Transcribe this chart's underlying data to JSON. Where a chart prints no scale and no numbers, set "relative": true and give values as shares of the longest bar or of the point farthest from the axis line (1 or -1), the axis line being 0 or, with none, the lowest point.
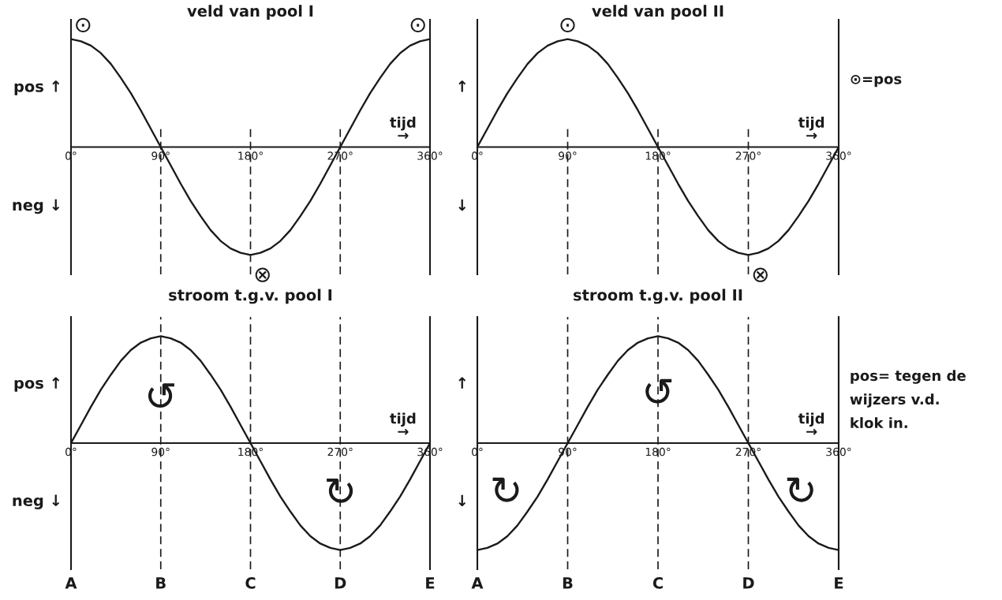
{
  "chart_data": [
    {
      "type": "line",
      "title": "veld van pool I",
      "xlabel": "tijd\n→",
      "relative": true,
      "line_style": "solid",
      "marker": "none",
      "x": [
        0,
        10,
        20,
        30,
        40,
        50,
        60,
        70,
        80,
        90,
        100,
        110,
        120,
        130,
        140,
        150,
        160,
        170,
        180,
        190,
        200,
        210,
        220,
        230,
        240,
        250,
        260,
        270,
        280,
        290,
        300,
        310,
        320,
        330,
        340,
        350,
        360
      ],
      "series": [
        {
          "color": "#1a1a1a",
          "values": [
            1,
            0.98,
            0.94,
            0.87,
            0.77,
            0.64,
            0.5,
            0.34,
            0.17,
            0,
            -0.17,
            -0.34,
            -0.5,
            -0.64,
            -0.77,
            -0.87,
            -0.94,
            -0.98,
            -1,
            -0.98,
            -0.94,
            -0.87,
            -0.77,
            -0.64,
            -0.5,
            -0.34,
            -0.17,
            0,
            0.17,
            0.34,
            0.5,
            0.64,
            0.77,
            0.87,
            0.94,
            0.98,
            1
          ]
        }
      ],
      "xlim": [
        0,
        360
      ],
      "xticks": [
        {
          "value": 0,
          "label": "0°"
        },
        {
          "value": 90,
          "label": "90°"
        },
        {
          "value": 180,
          "label": "180°"
        },
        {
          "value": 270,
          "label": "270°"
        },
        {
          "value": 360,
          "label": "360°"
        }
      ],
      "ref_lines": [
        {
          "axis": "x",
          "value": 90,
          "line_style": "dashed"
        },
        {
          "axis": "x",
          "value": 180,
          "line_style": "dashed"
        },
        {
          "axis": "x",
          "value": 270,
          "line_style": "dashed"
        }
      ],
      "annotations": [
        "pos ↑",
        "neg ↓",
        {
          "text": "⊙",
          "x": 0,
          "y": 1
        },
        {
          "text": "⊙",
          "x": 360,
          "y": 1
        },
        {
          "text": "⊗",
          "x": 180,
          "y": -1
        }
      ]
    },
    {
      "type": "line",
      "title": "veld van pool II",
      "xlabel": "tijd\n→",
      "relative": true,
      "line_style": "solid",
      "marker": "none",
      "x": [
        0,
        10,
        20,
        30,
        40,
        50,
        60,
        70,
        80,
        90,
        100,
        110,
        120,
        130,
        140,
        150,
        160,
        170,
        180,
        190,
        200,
        210,
        220,
        230,
        240,
        250,
        260,
        270,
        280,
        290,
        300,
        310,
        320,
        330,
        340,
        350,
        360
      ],
      "series": [
        {
          "color": "#1a1a1a",
          "values": [
            0,
            0.17,
            0.34,
            0.5,
            0.64,
            0.77,
            0.87,
            0.94,
            0.98,
            1,
            0.98,
            0.94,
            0.87,
            0.77,
            0.64,
            0.5,
            0.34,
            0.17,
            0,
            -0.17,
            -0.34,
            -0.5,
            -0.64,
            -0.77,
            -0.87,
            -0.94,
            -0.98,
            -1,
            -0.98,
            -0.94,
            -0.87,
            -0.77,
            -0.64,
            -0.5,
            -0.34,
            -0.17,
            0
          ]
        }
      ],
      "xlim": [
        0,
        360
      ],
      "xticks": [
        {
          "value": 0,
          "label": "0°"
        },
        {
          "value": 90,
          "label": "90°"
        },
        {
          "value": 180,
          "label": "180°"
        },
        {
          "value": 270,
          "label": "270°"
        },
        {
          "value": 360,
          "label": "360°"
        }
      ],
      "ref_lines": [
        {
          "axis": "x",
          "value": 90,
          "line_style": "dashed"
        },
        {
          "axis": "x",
          "value": 180,
          "line_style": "dashed"
        },
        {
          "axis": "x",
          "value": 270,
          "line_style": "dashed"
        }
      ],
      "annotations": [
        "↑",
        "↓",
        "⊙=pos",
        {
          "text": "⊙",
          "x": 90,
          "y": 1
        },
        {
          "text": "⊗",
          "x": 270,
          "y": -1
        }
      ]
    },
    {
      "type": "line",
      "title": "stroom t.g.v. pool I",
      "xlabel": "tijd\n→",
      "relative": true,
      "line_style": "solid",
      "marker": "none",
      "x": [
        0,
        10,
        20,
        30,
        40,
        50,
        60,
        70,
        80,
        90,
        100,
        110,
        120,
        130,
        140,
        150,
        160,
        170,
        180,
        190,
        200,
        210,
        220,
        230,
        240,
        250,
        260,
        270,
        280,
        290,
        300,
        310,
        320,
        330,
        340,
        350,
        360
      ],
      "series": [
        {
          "color": "#1a1a1a",
          "values": [
            0,
            0.17,
            0.34,
            0.5,
            0.64,
            0.77,
            0.87,
            0.94,
            0.98,
            1,
            0.98,
            0.94,
            0.87,
            0.77,
            0.64,
            0.5,
            0.34,
            0.17,
            0,
            -0.17,
            -0.34,
            -0.5,
            -0.64,
            -0.77,
            -0.87,
            -0.94,
            -0.98,
            -1,
            -0.98,
            -0.94,
            -0.87,
            -0.77,
            -0.64,
            -0.5,
            -0.34,
            -0.17,
            0
          ]
        }
      ],
      "xlim": [
        0,
        360
      ],
      "xticks": [
        {
          "value": 0,
          "label": "0°"
        },
        {
          "value": 90,
          "label": "90°"
        },
        {
          "value": 180,
          "label": "180°"
        },
        {
          "value": 270,
          "label": "270°"
        },
        {
          "value": 360,
          "label": "360°"
        }
      ],
      "ref_lines": [
        {
          "axis": "x",
          "value": 0,
          "line_style": "solid",
          "label": "A"
        },
        {
          "axis": "x",
          "value": 90,
          "line_style": "dashed",
          "label": "B"
        },
        {
          "axis": "x",
          "value": 180,
          "line_style": "dashed",
          "label": "C"
        },
        {
          "axis": "x",
          "value": 270,
          "line_style": "dashed",
          "label": "D"
        },
        {
          "axis": "x",
          "value": 360,
          "line_style": "solid",
          "label": "E"
        }
      ],
      "annotations": [
        "pos ↑",
        "neg ↓",
        {
          "text": "↺",
          "x": 90,
          "y": 0.41
        },
        {
          "text": "↻",
          "x": 270,
          "y": -0.48
        }
      ]
    },
    {
      "type": "line",
      "title": "stroom t.g.v. pool II",
      "xlabel": "tijd\n→",
      "relative": true,
      "line_style": "solid",
      "marker": "none",
      "x": [
        0,
        10,
        20,
        30,
        40,
        50,
        60,
        70,
        80,
        90,
        100,
        110,
        120,
        130,
        140,
        150,
        160,
        170,
        180,
        190,
        200,
        210,
        220,
        230,
        240,
        250,
        260,
        270,
        280,
        290,
        300,
        310,
        320,
        330,
        340,
        350,
        360
      ],
      "series": [
        {
          "color": "#1a1a1a",
          "values": [
            -1,
            -0.98,
            -0.94,
            -0.87,
            -0.77,
            -0.64,
            -0.5,
            -0.34,
            -0.17,
            0,
            0.17,
            0.34,
            0.5,
            0.64,
            0.77,
            0.87,
            0.94,
            0.98,
            1,
            0.98,
            0.94,
            0.87,
            0.77,
            0.64,
            0.5,
            0.34,
            0.17,
            0,
            -0.17,
            -0.34,
            -0.5,
            -0.64,
            -0.77,
            -0.87,
            -0.94,
            -0.98,
            -1
          ]
        }
      ],
      "xlim": [
        0,
        360
      ],
      "xticks": [
        {
          "value": 0,
          "label": "0°"
        },
        {
          "value": 90,
          "label": "90°"
        },
        {
          "value": 180,
          "label": "180°"
        },
        {
          "value": 270,
          "label": "270°"
        },
        {
          "value": 360,
          "label": "360°"
        }
      ],
      "ref_lines": [
        {
          "axis": "x",
          "value": 0,
          "line_style": "solid",
          "label": "A"
        },
        {
          "axis": "x",
          "value": 90,
          "line_style": "dashed",
          "label": "B"
        },
        {
          "axis": "x",
          "value": 180,
          "line_style": "dashed",
          "label": "C"
        },
        {
          "axis": "x",
          "value": 270,
          "line_style": "dashed",
          "label": "D"
        },
        {
          "axis": "x",
          "value": 360,
          "line_style": "solid",
          "label": "E"
        }
      ],
      "annotations": [
        "↑",
        "↓",
        "pos= tegen de\nwijzers v.d.\nklok in.",
        "↻",
        "↻",
        {
          "text": "↺",
          "x": 180,
          "y": 0.45
        }
      ]
    }
  ]
}
